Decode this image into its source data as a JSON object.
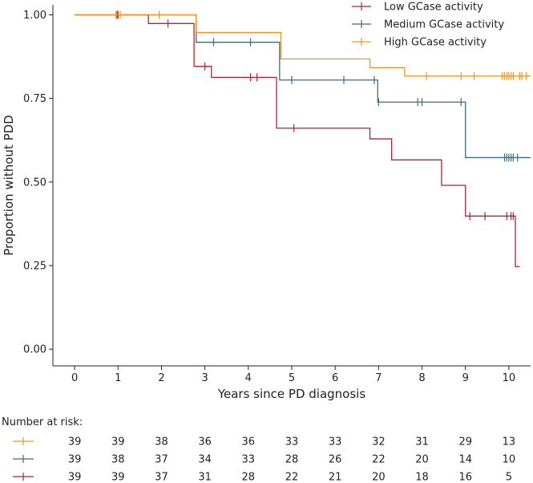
{
  "chart_data": {
    "type": "line",
    "subtype": "kaplan-meier",
    "title": "",
    "xlabel": "Years since PD diagnosis",
    "ylabel": "Proportion without PDD",
    "xlim": [
      -0.5,
      10.5
    ],
    "ylim": [
      -0.05,
      1.03
    ],
    "x_ticks": [
      0,
      1,
      2,
      3,
      4,
      5,
      6,
      7,
      8,
      9,
      10
    ],
    "x_tick_labels": [
      "0",
      "1",
      "2",
      "3",
      "4",
      "5",
      "6",
      "7",
      "8",
      "9",
      "10"
    ],
    "y_ticks": [
      0,
      0.25,
      0.5,
      0.75,
      1
    ],
    "y_tick_labels": [
      "0.00",
      "0.25",
      "0.50",
      "0.75",
      "1.00"
    ],
    "grid": false,
    "legend_position": "top-right",
    "series": [
      {
        "name": "Low GCase activity",
        "color": "#b4232f",
        "steps": [
          [
            0,
            1.0
          ],
          [
            1.7,
            0.974
          ],
          [
            2.75,
            0.846
          ],
          [
            3.15,
            0.813
          ],
          [
            4.65,
            0.661
          ],
          [
            6.8,
            0.629
          ],
          [
            7.3,
            0.566
          ],
          [
            8.45,
            0.49
          ],
          [
            9.0,
            0.398
          ],
          [
            10.15,
            0.247
          ],
          [
            10.25,
            0.247
          ]
        ],
        "censor_x": [
          0.98,
          2.15,
          3.0,
          4.05,
          4.2,
          5.05,
          9.1,
          9.45,
          9.95,
          10.05,
          10.1
        ]
      },
      {
        "name": "Medium GCase activity",
        "color": "#3e6b7f",
        "steps": [
          [
            0,
            1.0
          ],
          [
            2.8,
            0.918
          ],
          [
            4.72,
            0.805
          ],
          [
            6.98,
            0.739
          ],
          [
            9.0,
            0.573
          ],
          [
            10.5,
            0.573
          ]
        ],
        "censor_x": [
          1.0,
          3.2,
          4.05,
          5.0,
          6.2,
          6.9,
          7.0,
          7.9,
          8.0,
          8.9,
          9.9,
          9.95,
          10.0,
          10.05,
          10.1,
          10.2
        ]
      },
      {
        "name": "High GCase activity",
        "color": "#f39323",
        "steps": [
          [
            0,
            1.0
          ],
          [
            2.8,
            0.947
          ],
          [
            4.75,
            0.868
          ],
          [
            6.8,
            0.842
          ],
          [
            7.6,
            0.817
          ],
          [
            10.5,
            0.817
          ]
        ],
        "censor_x": [
          0.95,
          1.05,
          1.95,
          8.1,
          8.9,
          9.2,
          9.85,
          9.9,
          9.95,
          10.0,
          10.05,
          10.1,
          10.25,
          10.3,
          10.4
        ]
      }
    ],
    "risk_table": {
      "title": "Number at risk:",
      "rows": [
        {
          "name": "High GCase activity",
          "color": "#f39323",
          "values": [
            "39",
            "39",
            "38",
            "36",
            "36",
            "33",
            "33",
            "32",
            "31",
            "29",
            "13"
          ]
        },
        {
          "name": "Medium GCase activity",
          "color": "#3e6b7f",
          "values": [
            "39",
            "38",
            "37",
            "34",
            "33",
            "28",
            "26",
            "22",
            "20",
            "14",
            "10"
          ]
        },
        {
          "name": "Low GCase activity",
          "color": "#b4232f",
          "values": [
            "39",
            "39",
            "37",
            "31",
            "28",
            "22",
            "21",
            "20",
            "18",
            "16",
            "5"
          ]
        }
      ]
    }
  }
}
